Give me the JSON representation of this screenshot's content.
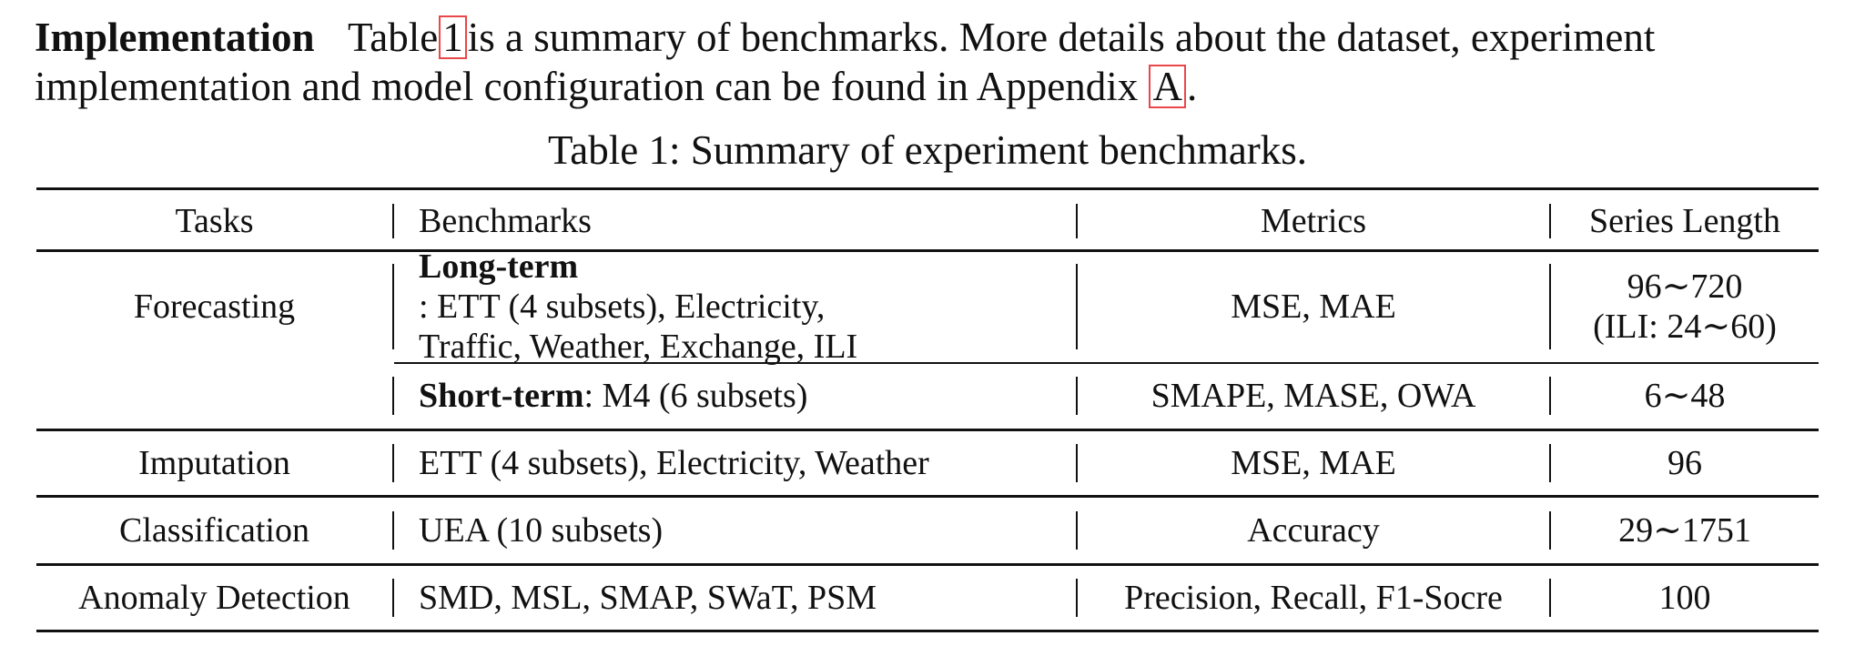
{
  "paragraph": {
    "heading": "Implementation",
    "text_1": "Table",
    "ref_table": "1",
    "text_2": "is a summary of benchmarks. More details about the dataset, experiment implementation and model configuration can be found in Appendix",
    "ref_appendix": "A",
    "text_3": "."
  },
  "caption": "Table 1: Summary of experiment benchmarks.",
  "table": {
    "headers": [
      "Tasks",
      "Benchmarks",
      "Metrics",
      "Series Length"
    ],
    "forecasting": {
      "task": "Forecasting",
      "long": {
        "bench_bold": "Long-term",
        "bench_line1": ": ETT (4 subsets), Electricity,",
        "bench_line2": "Traffic, Weather, Exchange, ILI",
        "metrics": "MSE, MAE",
        "length_line1": "96∼720",
        "length_line2": "(ILI: 24∼60)"
      },
      "short": {
        "bench_bold": "Short-term",
        "bench_rest": ": M4 (6 subsets)",
        "metrics": "SMAPE, MASE, OWA",
        "length": "6∼48"
      }
    },
    "imputation": {
      "task": "Imputation",
      "bench": "ETT (4 subsets), Electricity, Weather",
      "metrics": "MSE, MAE",
      "length": "96"
    },
    "classification": {
      "task": "Classification",
      "bench": "UEA (10 subsets)",
      "metrics": "Accuracy",
      "length": "29∼1751"
    },
    "anomaly": {
      "task": "Anomaly Detection",
      "bench": "SMD, MSL, SMAP, SWaT, PSM",
      "metrics": "Precision, Recall, F1-Socre",
      "length": "100"
    }
  },
  "colors": {
    "ref_box": "#e8474b",
    "text": "#111111"
  }
}
